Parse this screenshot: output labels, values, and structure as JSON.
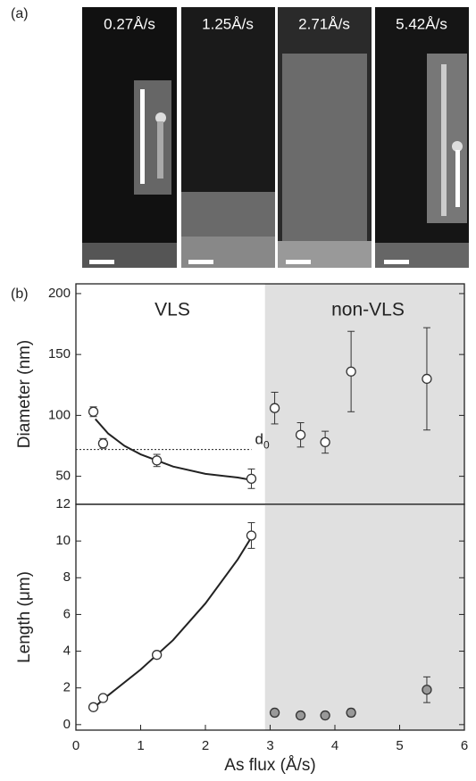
{
  "panel_labels": [
    "(a)",
    "(b)"
  ],
  "images": [
    {
      "label": "0.27Å/s"
    },
    {
      "label": "1.25Å/s"
    },
    {
      "label": "2.71Å/s"
    },
    {
      "label": "5.42Å/s"
    }
  ],
  "chart_data": [
    {
      "type": "scatter",
      "ylabel": "Diameter (nm)",
      "xlim": [
        0,
        6
      ],
      "ylim": [
        27,
        208
      ],
      "yticks": [
        50,
        100,
        150,
        200
      ],
      "shade": {
        "xlim": [
          2.92,
          6
        ],
        "color": "#e0e0e0"
      },
      "annotations": [
        "VLS",
        "non-VLS"
      ],
      "ref_line": {
        "value": 72,
        "x": [
          0,
          2.71
        ],
        "label": "d",
        "subscript": "0"
      },
      "fit": {
        "x": [
          0.3,
          0.5,
          0.75,
          1,
          1.5,
          2,
          2.5,
          2.71
        ],
        "values": [
          97,
          85,
          75,
          68,
          58,
          52,
          49,
          47
        ]
      },
      "series": [
        {
          "color": "#333333",
          "fill": "#ffffff",
          "x": [
            0.27,
            0.42,
            1.25,
            2.71
          ],
          "values": [
            103,
            77,
            63,
            48
          ],
          "errors": [
            4,
            4,
            5,
            8
          ]
        },
        {
          "color": "#333333",
          "fill": "#ffffff",
          "x": [
            3.07,
            3.47,
            3.85,
            4.25,
            5.42
          ],
          "values": [
            106,
            84,
            78,
            136,
            130
          ],
          "errors": [
            13,
            10,
            9,
            33,
            42
          ]
        }
      ]
    },
    {
      "type": "scatter",
      "ylabel": "Length (μm)",
      "xlabel": "As flux (Å/s)",
      "xlim": [
        0,
        6
      ],
      "xticks": [
        0,
        1,
        2,
        3,
        4,
        5,
        6
      ],
      "ylim": [
        -0.3,
        12
      ],
      "yticks": [
        0,
        2,
        4,
        6,
        8,
        10,
        12
      ],
      "shade": {
        "xlim": [
          2.92,
          6
        ],
        "color": "#e0e0e0"
      },
      "fit": {
        "x": [
          0.27,
          0.5,
          1,
          1.5,
          2,
          2.5,
          2.71
        ],
        "values": [
          0.9,
          1.6,
          3.0,
          4.6,
          6.6,
          9.0,
          10.2
        ]
      },
      "series": [
        {
          "color": "#333333",
          "fill": "#ffffff",
          "x": [
            0.27,
            0.42,
            1.25,
            2.71
          ],
          "values": [
            0.95,
            1.45,
            3.8,
            10.3
          ],
          "errors": [
            0.12,
            0.12,
            0.1,
            0.7
          ]
        },
        {
          "color": "#333333",
          "fill": "#999999",
          "x": [
            3.07,
            3.47,
            3.85,
            4.25,
            5.42
          ],
          "values": [
            0.65,
            0.5,
            0.5,
            0.65,
            1.9
          ],
          "errors": [
            0.1,
            0.08,
            0.08,
            0.2,
            0.7
          ]
        }
      ]
    }
  ]
}
